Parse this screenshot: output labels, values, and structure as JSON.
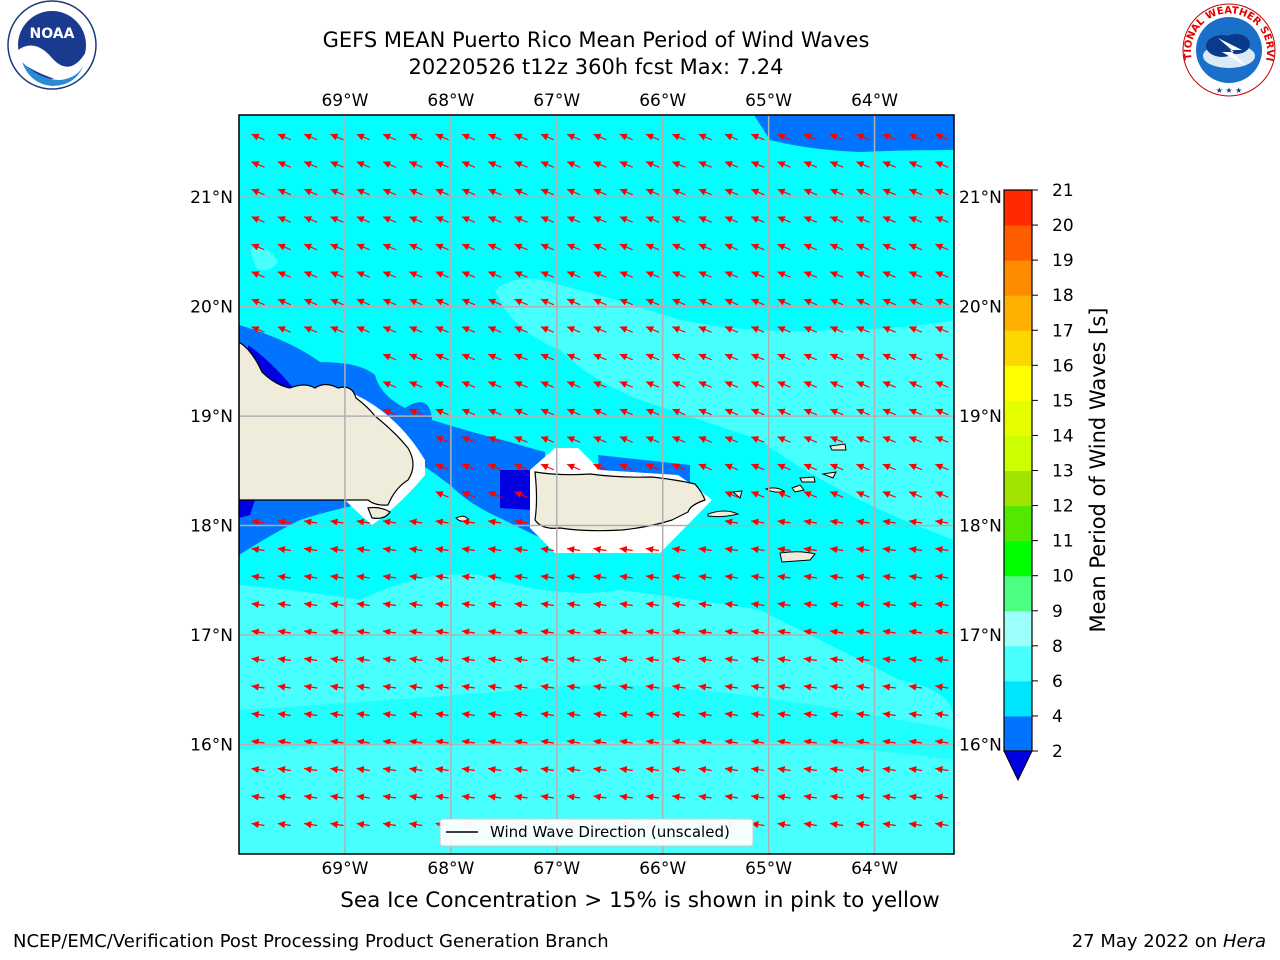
{
  "title": {
    "line1": "GEFS MEAN Puerto Rico Mean Period of Wind Waves",
    "line2": "20220526 t12z 360h fcst   Max: 7.24"
  },
  "logos": {
    "left": {
      "icon": "noaa-logo",
      "text": "NOAA",
      "ring_text": "NATIONAL OCEANIC AND ATMOSPHERIC ADMINISTRATION · U.S. DEPARTMENT OF COMMERCE"
    },
    "right": {
      "icon": "nws-logo",
      "ring_text": "NATIONAL WEATHER SERVICE"
    }
  },
  "map": {
    "lon_range": [
      -70.0,
      -63.25
    ],
    "lat_range": [
      15.0,
      21.75
    ],
    "lon_ticks": [
      "69°W",
      "68°W",
      "67°W",
      "66°W",
      "65°W",
      "64°W"
    ],
    "lon_tick_values": [
      -69,
      -68,
      -67,
      -66,
      -65,
      -64
    ],
    "lat_ticks": [
      "21°N",
      "20°N",
      "19°N",
      "18°N",
      "17°N",
      "16°N"
    ],
    "lat_tick_values": [
      21,
      20,
      19,
      18,
      17,
      16
    ],
    "grid": true,
    "ocean_color": "#00ffff",
    "land_color": "#efecdc",
    "arrow_color": "#ff0000",
    "legend": {
      "label": "Wind Wave Direction (unscaled)",
      "placement": "bottom-center"
    }
  },
  "colorbar": {
    "label": "Mean Period of Wind Waves [s]",
    "tick_labels": [
      "2",
      "4",
      "6",
      "8",
      "9",
      "10",
      "11",
      "12",
      "13",
      "14",
      "15",
      "16",
      "17",
      "18",
      "19",
      "20",
      "21"
    ],
    "tick_values": [
      2,
      4,
      6,
      8,
      9,
      10,
      11,
      12,
      13,
      14,
      15,
      16,
      17,
      18,
      19,
      20,
      21
    ],
    "colors": [
      "#0073ff",
      "#00e5ff",
      "#47fffc",
      "#9cfff9",
      "#4cff83",
      "#00ff00",
      "#52e800",
      "#a0e400",
      "#ccff00",
      "#e5ff00",
      "#ffff00",
      "#ffd700",
      "#ffb000",
      "#ff8c00",
      "#ff5c00",
      "#ff2a00"
    ],
    "under_color": "#0000e0",
    "extend": "min"
  },
  "note": "Sea Ice Concentration > 15% is shown in pink to yellow",
  "footer": {
    "left": "NCEP/EMC/Verification Post Processing Product Generation Branch",
    "right_prefix": "27 May 2022 on ",
    "right_host": "Hera"
  }
}
